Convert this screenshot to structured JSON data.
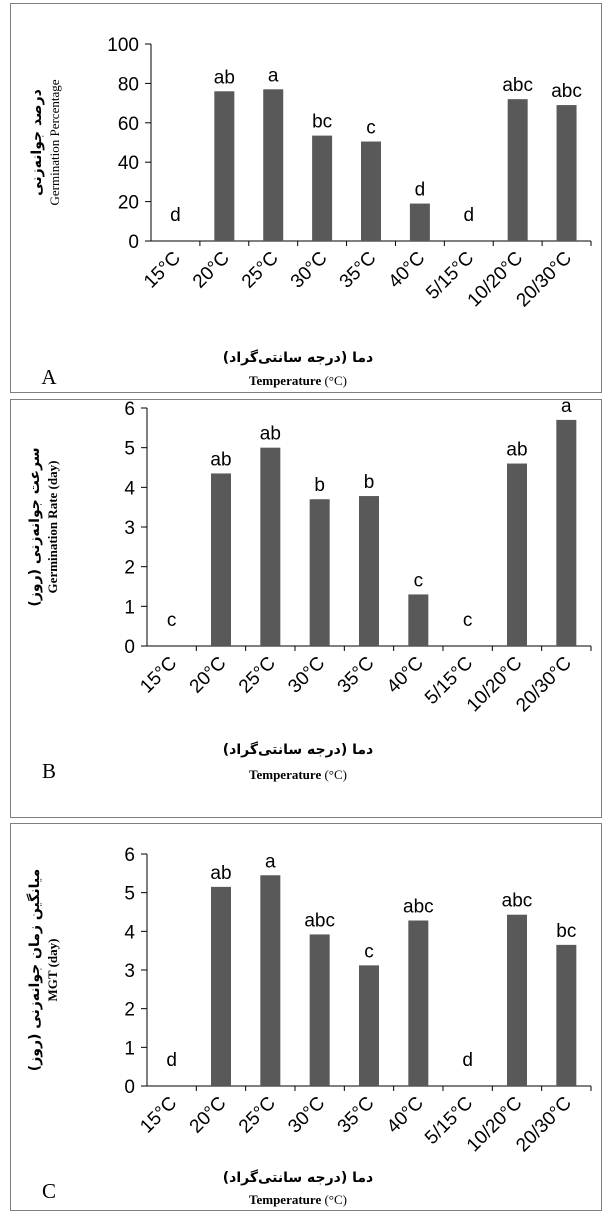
{
  "chart_data": [
    {
      "type": "bar",
      "panel_label": "A",
      "categories": [
        "15°C",
        "20°C",
        "25°C",
        "30°C",
        "35°C",
        "40°C",
        "5/15°C",
        "10/20°C",
        "20/30°C"
      ],
      "values": [
        0,
        76,
        77,
        53.5,
        50.5,
        19,
        0,
        72,
        69
      ],
      "letters": [
        "d",
        "ab",
        "a",
        "bc",
        "c",
        "d",
        "d",
        "abc",
        "abc"
      ],
      "ylabel_fa": "درصد جوانه‌زنی",
      "ylabel_en": "Germination Percentage",
      "xlabel_fa": "دما (درجه سانتی‌گراد)",
      "xlabel_en_bold": "Temperature",
      "xlabel_en_unit": "(°C)",
      "ylim": [
        0,
        100
      ],
      "yticks": [
        "0",
        "20",
        "40",
        "60",
        "80",
        "100"
      ],
      "bar_color": "#595959"
    },
    {
      "type": "bar",
      "panel_label": "B",
      "categories": [
        "15°C",
        "20°C",
        "25°C",
        "30°C",
        "35°C",
        "40°C",
        "5/15°C",
        "10/20°C",
        "20/30°C"
      ],
      "values": [
        0,
        4.35,
        5.0,
        3.7,
        3.78,
        1.3,
        0,
        4.6,
        5.7
      ],
      "letters": [
        "c",
        "ab",
        "ab",
        "b",
        "b",
        "c",
        "c",
        "ab",
        "a"
      ],
      "ylabel_fa": "سرعت جوانه‌زنی (روز)",
      "ylabel_en": "Germination Rate (day)",
      "xlabel_fa": "دما (درجه سانتی‌گراد)",
      "xlabel_en_bold": "Temperature",
      "xlabel_en_unit": "(°C)",
      "ylim": [
        0,
        6
      ],
      "yticks": [
        "0",
        "1",
        "2",
        "3",
        "4",
        "5",
        "6"
      ],
      "bar_color": "#595959"
    },
    {
      "type": "bar",
      "panel_label": "C",
      "categories": [
        "15°C",
        "20°C",
        "25°C",
        "30°C",
        "35°C",
        "40°C",
        "5/15°C",
        "10/20°C",
        "20/30°C"
      ],
      "values": [
        0,
        5.15,
        5.45,
        3.92,
        3.12,
        4.28,
        0,
        4.43,
        3.65
      ],
      "letters": [
        "d",
        "ab",
        "a",
        "abc",
        "c",
        "abc",
        "d",
        "abc",
        "bc"
      ],
      "ylabel_fa": "میانگین زمان جوانه‌زنی (روز)",
      "ylabel_en": "MGT (day)",
      "xlabel_fa": "دما (درجه سانتی‌گراد)",
      "xlabel_en_bold": "Temperature",
      "xlabel_en_unit": "(°C)",
      "ylim": [
        0,
        6
      ],
      "yticks": [
        "0",
        "1",
        "2",
        "3",
        "4",
        "5",
        "6"
      ],
      "bar_color": "#595959"
    }
  ]
}
